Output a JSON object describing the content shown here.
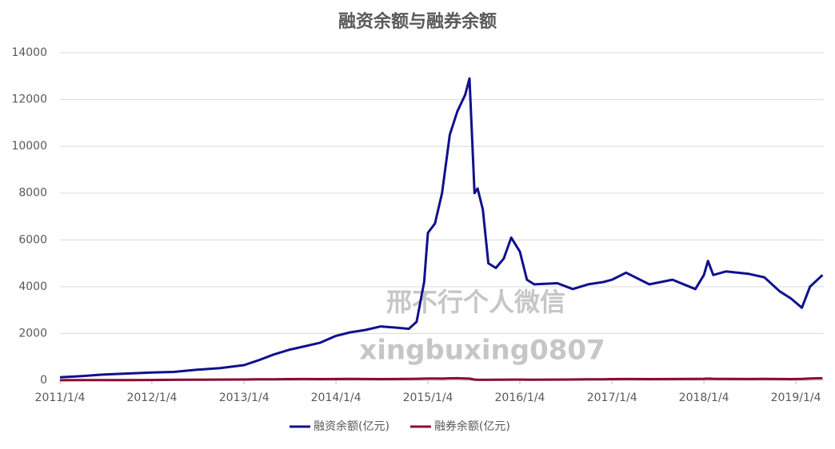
{
  "chart_data": {
    "type": "line",
    "title": "融资余额与融券余额",
    "annotations": [
      "邢不行个人微信",
      "xingbuxing0807"
    ],
    "x": [
      "2011/1/4",
      "2011/4/1",
      "2011/7/1",
      "2011/10/1",
      "2012/1/4",
      "2012/4/1",
      "2012/7/1",
      "2012/10/1",
      "2013/1/4",
      "2013/3/1",
      "2013/5/1",
      "2013/7/1",
      "2013/9/1",
      "2013/11/1",
      "2014/1/4",
      "2014/3/1",
      "2014/5/1",
      "2014/7/1",
      "2014/9/1",
      "2014/10/20",
      "2014/11/20",
      "2014/12/20",
      "2015/1/4",
      "2015/2/1",
      "2015/3/1",
      "2015/4/1",
      "2015/5/1",
      "2015/6/1",
      "2015/6/18",
      "2015/7/8",
      "2015/7/20",
      "2015/8/10",
      "2015/9/1",
      "2015/10/1",
      "2015/11/1",
      "2015/12/1",
      "2016/1/4",
      "2016/2/1",
      "2016/3/1",
      "2016/6/1",
      "2016/8/1",
      "2016/10/1",
      "2016/12/1",
      "2017/1/4",
      "2017/3/1",
      "2017/6/1",
      "2017/9/1",
      "2017/12/1",
      "2018/1/4",
      "2018/1/20",
      "2018/2/10",
      "2018/4/1",
      "2018/7/1",
      "2018/9/1",
      "2018/11/1",
      "2018/12/15",
      "2019/1/28",
      "2019/3/1",
      "2019/4/20"
    ],
    "series": [
      {
        "name": "融资余额(亿元)",
        "color": "#10108c",
        "values": [
          130,
          180,
          250,
          290,
          330,
          360,
          450,
          520,
          650,
          850,
          1100,
          1300,
          1450,
          1600,
          1900,
          2050,
          2150,
          2300,
          2250,
          2200,
          2500,
          4200,
          6300,
          6700,
          8000,
          10500,
          11500,
          12200,
          12900,
          8000,
          8200,
          7300,
          5000,
          4800,
          5200,
          6100,
          5500,
          4300,
          4100,
          4150,
          3900,
          4100,
          4200,
          4300,
          4600,
          4100,
          4300,
          3900,
          4500,
          5100,
          4500,
          4650,
          4550,
          4400,
          3800,
          3500,
          3100,
          4000,
          4500
        ]
      },
      {
        "name": "融券余额(亿元)",
        "color": "#8c0a32",
        "values": [
          5,
          6,
          8,
          10,
          15,
          20,
          25,
          30,
          35,
          40,
          45,
          50,
          55,
          50,
          55,
          60,
          55,
          50,
          55,
          60,
          65,
          70,
          75,
          80,
          70,
          85,
          90,
          80,
          70,
          30,
          20,
          20,
          20,
          25,
          25,
          30,
          30,
          25,
          25,
          30,
          35,
          40,
          45,
          50,
          55,
          50,
          55,
          60,
          65,
          70,
          65,
          60,
          55,
          60,
          55,
          50,
          60,
          80,
          90
        ]
      }
    ],
    "xlim": [
      "2011/1/4",
      "2019/4/25"
    ],
    "xticks": [
      "2011/1/4",
      "2012/1/4",
      "2013/1/4",
      "2014/1/4",
      "2015/1/4",
      "2016/1/4",
      "2017/1/4",
      "2018/1/4",
      "2019/1/4"
    ],
    "ylim": [
      0,
      14000
    ],
    "yticks": [
      0,
      2000,
      4000,
      6000,
      8000,
      10000,
      12000,
      14000
    ],
    "grid": true,
    "legend": "bottom"
  }
}
